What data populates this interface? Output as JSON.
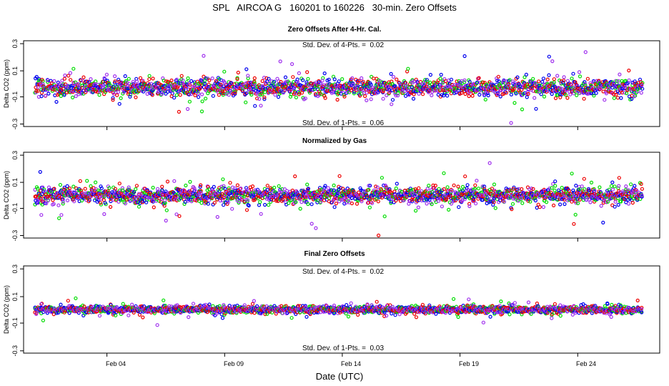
{
  "chart_data": {
    "type": "scatter",
    "title": "SPL   AIRCOA G   160201 to 160226   30-min. Zero Offsets",
    "xlabel": "Date (UTC)",
    "x_ticks": [
      "Feb 04",
      "Feb 09",
      "Feb 14",
      "Feb 19",
      "Feb 24"
    ],
    "x_tick_days": [
      4,
      9,
      14,
      19,
      24
    ],
    "xlim_days": [
      0.5,
      27.3
    ],
    "data_range_days": [
      1.0,
      26.6
    ],
    "colors": {
      "green": "#00dd00",
      "blue": "#0000ee",
      "red": "#ee0000",
      "purple": "#a030ee",
      "black": "#000000"
    },
    "panels": [
      {
        "title": "Zero Offsets After 4-Hr. Cal.",
        "ylabel": "Delta CO2 (ppm)",
        "ylim": [
          -0.33,
          0.33
        ],
        "y_ticks": [
          "0.3",
          "0.1",
          "-0.1",
          "-0.3"
        ],
        "y_tick_values": [
          0.3,
          0.1,
          -0.1,
          -0.3
        ],
        "annotation_top": "Std. Dev. of 4-Pts. =  0.02",
        "annotation_bottom": "Std. Dev. of 1-Pts. =  0.06",
        "series_center": -0.03,
        "series_spread": 0.06,
        "show_gas_means": false
      },
      {
        "title": "Normalized by Gas",
        "ylabel": "Delta CO2 (ppm)",
        "ylim": [
          -0.33,
          0.33
        ],
        "y_ticks": [
          "0.3",
          "0.1",
          "-0.1",
          "-0.3"
        ],
        "y_tick_values": [
          0.3,
          0.1,
          -0.1,
          -0.3
        ],
        "annotation_top": "",
        "annotation_bottom": "",
        "series_center": 0.0,
        "series_spread": 0.06,
        "show_gas_means": true
      },
      {
        "title": "Final Zero Offsets",
        "ylabel": "Delta CO2 (ppm)",
        "ylim": [
          -0.33,
          0.33
        ],
        "y_ticks": [
          "0.3",
          "0.1",
          "-0.1",
          "-0.3"
        ],
        "y_tick_values": [
          0.3,
          0.1,
          -0.1,
          -0.3
        ],
        "annotation_top": "Std. Dev. of 4-Pts. =  0.02",
        "annotation_bottom": "Std. Dev. of 1-Pts. =  0.03",
        "series_center": 0.0,
        "series_spread": 0.025,
        "show_gas_means": false
      }
    ]
  }
}
